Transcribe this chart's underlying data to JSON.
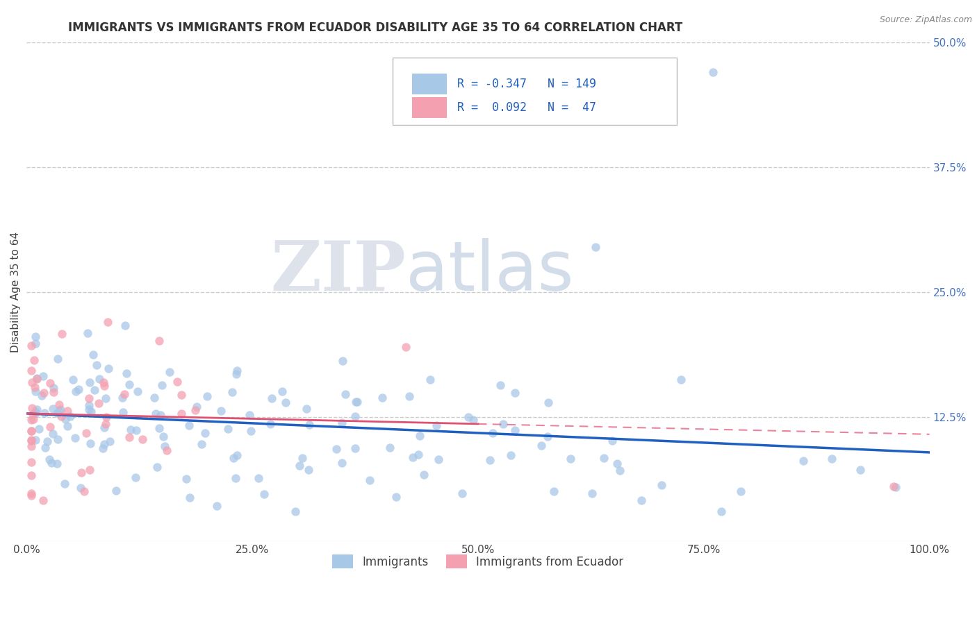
{
  "title": "IMMIGRANTS VS IMMIGRANTS FROM ECUADOR DISABILITY AGE 35 TO 64 CORRELATION CHART",
  "source": "Source: ZipAtlas.com",
  "ylabel": "Disability Age 35 to 64",
  "legend_labels": [
    "Immigrants",
    "Immigrants from Ecuador"
  ],
  "r_values": [
    -0.347,
    0.092
  ],
  "n_values": [
    149,
    47
  ],
  "xlim": [
    0.0,
    1.0
  ],
  "ylim": [
    0.0,
    0.5
  ],
  "yticks": [
    0.0,
    0.125,
    0.25,
    0.375,
    0.5
  ],
  "xticks": [
    0.0,
    0.25,
    0.5,
    0.75,
    1.0
  ],
  "xtick_labels": [
    "0.0%",
    "25.0%",
    "50.0%",
    "75.0%",
    "100.0%"
  ],
  "ytick_labels_right": [
    "",
    "12.5%",
    "25.0%",
    "37.5%",
    "50.0%"
  ],
  "blue_color": "#a8c8e8",
  "pink_color": "#f4a0b0",
  "blue_line_color": "#2060c0",
  "pink_line_color": "#e05070",
  "background_color": "#ffffff",
  "title_fontsize": 12,
  "axis_label_fontsize": 11,
  "tick_fontsize": 11,
  "legend_fontsize": 12,
  "blue_seed": 123,
  "pink_seed": 456
}
